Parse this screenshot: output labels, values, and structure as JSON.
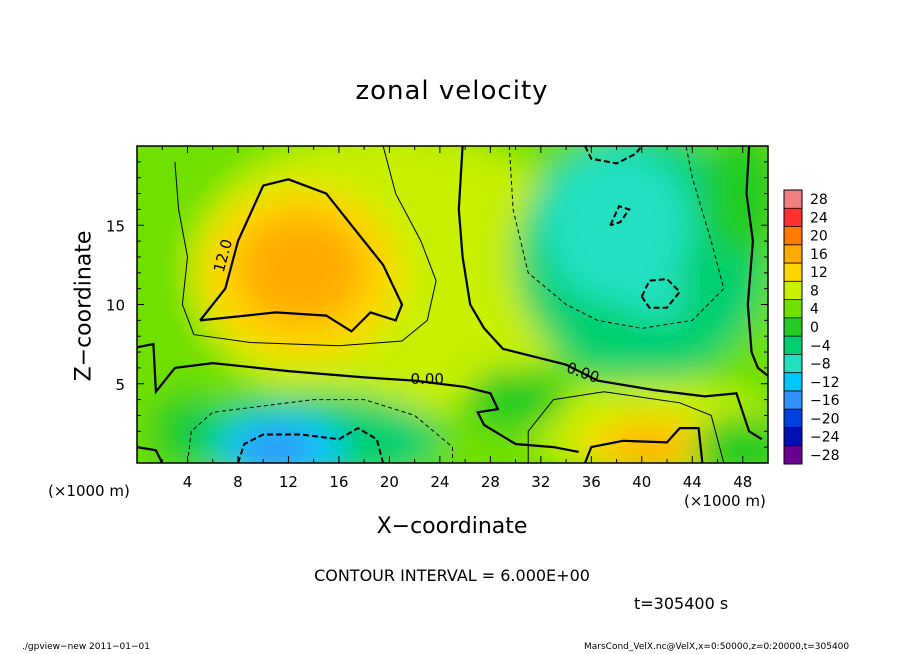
{
  "chart_data": {
    "type": "heatmap",
    "title": "zonal velocity",
    "xlabel": "X−coordinate",
    "ylabel": "Z−coordinate",
    "x_unit_label": "(×1000 m)",
    "xlim": [
      0,
      50
    ],
    "ylim": [
      0,
      20
    ],
    "x_ticks": [
      4,
      8,
      12,
      16,
      20,
      24,
      28,
      32,
      36,
      40,
      44,
      48
    ],
    "y_ticks": [
      5,
      10,
      15
    ],
    "colorbar": {
      "levels": [
        28,
        24,
        20,
        16,
        12,
        8,
        4,
        0,
        -4,
        -8,
        -12,
        -16,
        -20,
        -24,
        -28
      ],
      "labels": [
        "28",
        "24",
        "20",
        "16",
        "12",
        "8",
        "4",
        "0",
        "−4",
        "−8",
        "−12",
        "−16",
        "−20",
        "−24",
        "−28"
      ]
    },
    "contour_labels": [
      {
        "text": "12.0",
        "x": 7.2,
        "y": 13.0
      },
      {
        "text": "0.00",
        "x": 23.0,
        "y": 5.0
      },
      {
        "text": "0.00",
        "x": 35.2,
        "y": 5.4
      }
    ],
    "features": [
      {
        "name": "positive jet",
        "x": 13,
        "y": 12,
        "value": 18
      },
      {
        "name": "negative core",
        "x": 12,
        "y": 1,
        "value": -18
      },
      {
        "name": "positive surface flow",
        "x": 41,
        "y": 1.5,
        "value": 17
      },
      {
        "name": "negative upper region",
        "x": 38,
        "y": 14,
        "value": -9
      }
    ]
  },
  "notes": {
    "contour_interval": "CONTOUR INTERVAL = 6.000E+00",
    "time": "t=305400 s",
    "footer_left": "./gpview−new   2011−01−01",
    "footer_right": "MarsCond_VelX.nc@VelX,x=0:50000,z=0:20000,t=305400"
  }
}
